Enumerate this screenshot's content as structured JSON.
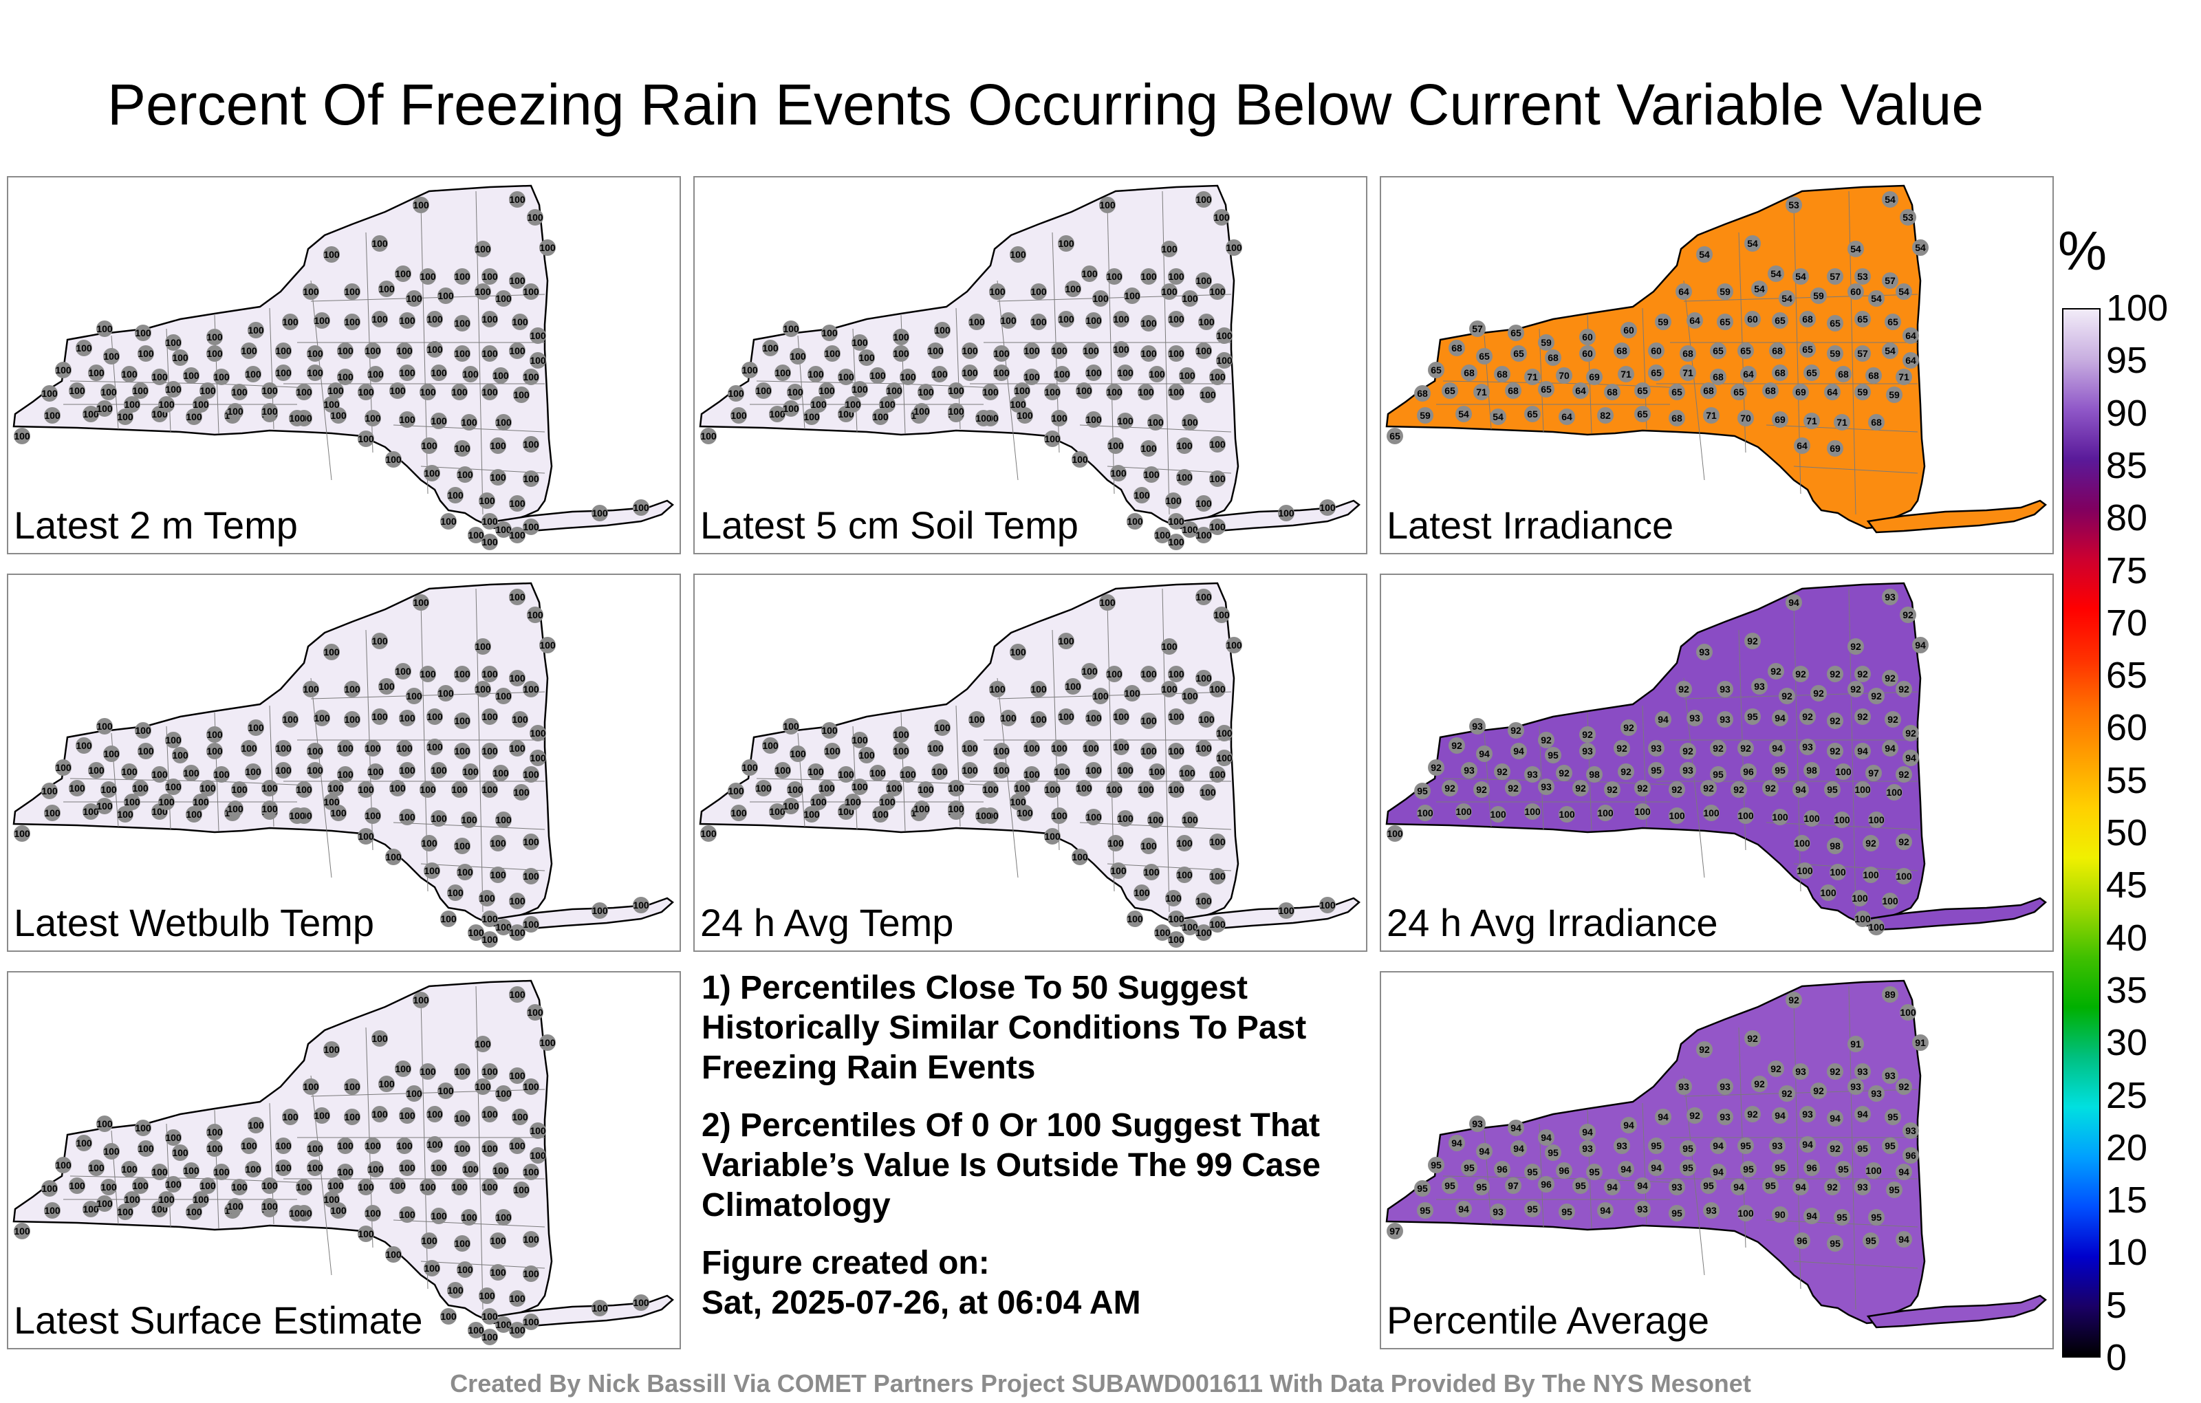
{
  "title": "Percent Of Freezing Rain Events Occurring Below Current Variable Value",
  "panels": [
    {
      "label": "Latest 2 m Temp",
      "fill": "#f0ebf6",
      "stations": "100"
    },
    {
      "label": "Latest 5 cm Soil Temp",
      "fill": "#f0ebf6",
      "stations": "100"
    },
    {
      "label": "Latest Irradiance",
      "fill": "#fb8c10",
      "stations": "irr"
    },
    {
      "label": "Latest Wetbulb Temp",
      "fill": "#f0ebf6",
      "stations": "100"
    },
    {
      "label": "24 h Avg Temp",
      "fill": "#f0ebf6",
      "stations": "100"
    },
    {
      "label": "24 h Avg Irradiance",
      "fill": "#8a4cc4",
      "stations": "avgirr"
    },
    {
      "label": "Latest Surface Estimate",
      "fill": "#f0ebf6",
      "stations": "100"
    },
    {
      "label": "Percentile Average",
      "fill": "#9456c8",
      "stations": "avg"
    }
  ],
  "notes": {
    "line1": "1) Percentiles Close To 50 Suggest Historically Similar Conditions To Past Freezing Rain Events",
    "line2": "2) Percentiles Of 0 Or 100 Suggest That Variable’s Value Is Outside The 99 Case Climatology",
    "line3a": "Figure created on:",
    "line3b": "Sat, 2025-07-26, at 06:04 AM"
  },
  "colorbar": {
    "unit": "%",
    "ticks": [
      "0",
      "5",
      "10",
      "15",
      "20",
      "25",
      "30",
      "35",
      "40",
      "45",
      "50",
      "55",
      "60",
      "65",
      "70",
      "75",
      "80",
      "85",
      "90",
      "95",
      "100"
    ],
    "colors": [
      "#000000",
      "#1a0066",
      "#0000cc",
      "#0050ff",
      "#00a0ff",
      "#00e0e0",
      "#00c080",
      "#00b000",
      "#40c000",
      "#a0d800",
      "#f0f000",
      "#ffd000",
      "#ffa000",
      "#ff7000",
      "#ff3000",
      "#ff0000",
      "#cc0030",
      "#800060",
      "#5a1a9a",
      "#9058c8",
      "#c8aee0",
      "#f2ecf8"
    ]
  },
  "station_values": {
    "100": [
      "100",
      "100",
      "100",
      "100",
      "100",
      "100",
      "100",
      "100",
      "100",
      "100",
      "100",
      "100",
      "100",
      "100",
      "100",
      "100",
      "100",
      "100",
      "100",
      "100",
      "100",
      "100",
      "100",
      "100",
      "100",
      "100",
      "100",
      "100",
      "100",
      "100",
      "100",
      "100",
      "100",
      "100",
      "100",
      "100",
      "100",
      "100",
      "100",
      "100",
      "100",
      "100",
      "100",
      "100",
      "100",
      "100",
      "100",
      "100",
      "100",
      "100",
      "100",
      "100",
      "100",
      "100",
      "100",
      "100",
      "100",
      "100",
      "100",
      "100",
      "100",
      "100",
      "100",
      "100",
      "100",
      "100",
      "100",
      "100",
      "100",
      "100",
      "100",
      "100",
      "100",
      "100",
      "100",
      "100",
      "100",
      "100",
      "100",
      "100",
      "100",
      "100",
      "100",
      "100",
      "100",
      "100",
      "100",
      "100",
      "100",
      "100",
      "100",
      "100",
      "100",
      "100",
      "100",
      "100",
      "100",
      "100",
      "100",
      "100",
      "100",
      "100",
      "100",
      "100",
      "100",
      "100",
      "100",
      "100",
      "100",
      "100",
      "100",
      "100",
      "100",
      "100",
      "100",
      "100",
      "100",
      "100",
      "100",
      "100",
      "100",
      "100",
      "100",
      "100",
      "100",
      "100",
      "100",
      "100"
    ],
    "irr": [
      "53",
      "54",
      "53",
      "54",
      "54",
      "54",
      "54",
      "54",
      "54",
      "57",
      "53",
      "57",
      "64",
      "59",
      "54",
      "54",
      "59",
      "60",
      "54",
      "54",
      "57",
      "65",
      "59",
      "60",
      "60",
      "59",
      "64",
      "65",
      "60",
      "65",
      "68",
      "65",
      "65",
      "65",
      "64",
      "68",
      "65",
      "65",
      "68",
      "60",
      "68",
      "60",
      "68",
      "65",
      "65",
      "68",
      "65",
      "59",
      "57",
      "54",
      "64",
      "65",
      "68",
      "68",
      "71",
      "70",
      "69",
      "71",
      "65",
      "71",
      "68",
      "64",
      "68",
      "65",
      "68",
      "68",
      "71",
      "68",
      "65",
      "71",
      "68",
      "65",
      "64",
      "68",
      "65",
      "65",
      "68",
      "65",
      "68",
      "69",
      "64",
      "59",
      "59",
      "59",
      "54",
      "54",
      "65",
      "64",
      "82",
      "65",
      "68",
      "71",
      "70",
      "69",
      "71",
      "71",
      "68",
      "65",
      "64",
      "69"
    ],
    "avgirr": [
      "94",
      "93",
      "92",
      "93",
      "92",
      "92",
      "94",
      "92",
      "92",
      "92",
      "92",
      "92",
      "92",
      "93",
      "93",
      "92",
      "92",
      "92",
      "92",
      "92",
      "93",
      "92",
      "92",
      "92",
      "92",
      "94",
      "93",
      "93",
      "95",
      "94",
      "92",
      "92",
      "92",
      "92",
      "92",
      "92",
      "94",
      "94",
      "95",
      "93",
      "92",
      "93",
      "92",
      "92",
      "92",
      "94",
      "93",
      "92",
      "94",
      "94",
      "94",
      "92",
      "93",
      "92",
      "93",
      "92",
      "98",
      "92",
      "95",
      "93",
      "95",
      "96",
      "95",
      "98",
      "100",
      "97",
      "92",
      "95",
      "92",
      "92",
      "92",
      "93",
      "92",
      "92",
      "92",
      "92",
      "92",
      "92",
      "92",
      "94",
      "95",
      "100",
      "100",
      "100",
      "100",
      "100",
      "100",
      "100",
      "100",
      "100",
      "100",
      "100",
      "100",
      "100",
      "100",
      "100",
      "100",
      "100",
      "100",
      "98",
      "92",
      "92",
      "100",
      "100",
      "100",
      "100",
      "100",
      "100",
      "100",
      "100",
      "100"
    ],
    "avg": [
      "92",
      "89",
      "100",
      "92",
      "92",
      "91",
      "91",
      "92",
      "93",
      "92",
      "93",
      "93",
      "93",
      "93",
      "92",
      "92",
      "92",
      "93",
      "93",
      "92",
      "93",
      "94",
      "94",
      "94",
      "94",
      "94",
      "92",
      "93",
      "92",
      "94",
      "93",
      "94",
      "94",
      "95",
      "93",
      "94",
      "94",
      "94",
      "95",
      "93",
      "93",
      "95",
      "95",
      "94",
      "95",
      "93",
      "94",
      "92",
      "95",
      "95",
      "96",
      "95",
      "95",
      "96",
      "95",
      "96",
      "95",
      "94",
      "94",
      "95",
      "94",
      "95",
      "95",
      "96",
      "95",
      "100",
      "94",
      "95",
      "95",
      "95",
      "97",
      "96",
      "95",
      "94",
      "94",
      "93",
      "95",
      "94",
      "95",
      "94",
      "92",
      "93",
      "95",
      "95",
      "94",
      "93",
      "95",
      "95",
      "94",
      "93",
      "95",
      "93",
      "100",
      "90",
      "94",
      "95",
      "95",
      "97",
      "96",
      "95",
      "95",
      "94"
    ]
  },
  "credit": "Created By Nick Bassill Via COMET Partners Project SUBAWD001611 With Data Provided By The NYS Mesonet"
}
